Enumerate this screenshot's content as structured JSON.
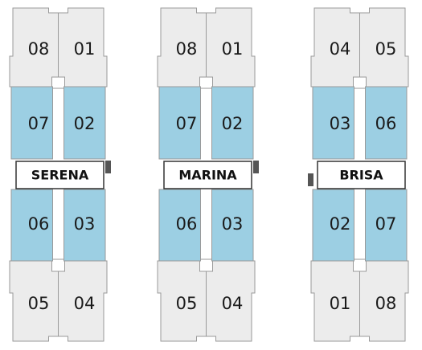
{
  "buildings": [
    {
      "name": "SERENA",
      "rows": [
        [
          "08",
          "01"
        ],
        [
          "07",
          "02"
        ],
        [
          "06",
          "03"
        ],
        [
          "05",
          "04"
        ]
      ]
    },
    {
      "name": "MARINA",
      "rows": [
        [
          "08",
          "01"
        ],
        [
          "07",
          "02"
        ],
        [
          "06",
          "03"
        ],
        [
          "05",
          "04"
        ]
      ]
    },
    {
      "name": "BRISA",
      "rows": [
        [
          "04",
          "05"
        ],
        [
          "03",
          "06"
        ],
        [
          "02",
          "07"
        ],
        [
          "01",
          "08"
        ]
      ]
    }
  ]
}
